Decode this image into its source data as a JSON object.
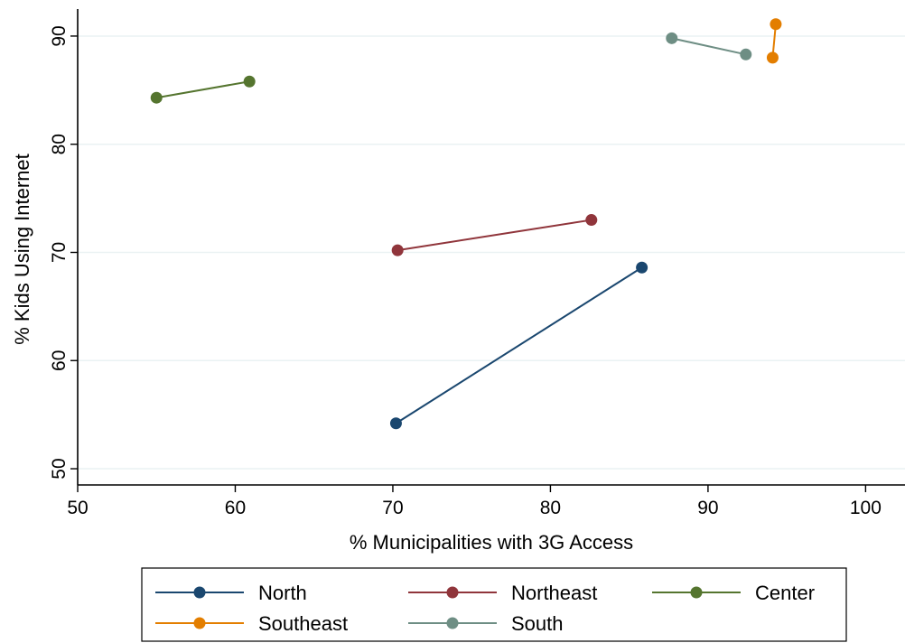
{
  "chart_data": {
    "type": "line",
    "title": "",
    "xlabel": "% Municipalities with 3G Access",
    "ylabel": "% Kids Using Internet",
    "xlim": [
      50,
      102.5
    ],
    "ylim": [
      48.5,
      92.5
    ],
    "xticks": [
      50,
      60,
      70,
      80,
      90,
      100
    ],
    "yticks": [
      50,
      60,
      70,
      80,
      90
    ],
    "grid": "horizontal",
    "legend_position": "bottom",
    "series": [
      {
        "name": "North",
        "color": "#1a476f",
        "points": [
          {
            "x": 70.2,
            "y": 54.2
          },
          {
            "x": 85.8,
            "y": 68.6
          }
        ]
      },
      {
        "name": "Northeast",
        "color": "#90353b",
        "points": [
          {
            "x": 70.3,
            "y": 70.2
          },
          {
            "x": 82.6,
            "y": 73.0
          }
        ]
      },
      {
        "name": "Center",
        "color": "#55752f",
        "points": [
          {
            "x": 55.0,
            "y": 84.3
          },
          {
            "x": 60.9,
            "y": 85.8
          }
        ]
      },
      {
        "name": "Southeast",
        "color": "#e37e00",
        "points": [
          {
            "x": 94.1,
            "y": 88.0
          },
          {
            "x": 94.3,
            "y": 91.1
          }
        ]
      },
      {
        "name": "South",
        "color": "#6e8e84",
        "points": [
          {
            "x": 87.7,
            "y": 89.8
          },
          {
            "x": 92.4,
            "y": 88.3
          }
        ]
      }
    ]
  }
}
